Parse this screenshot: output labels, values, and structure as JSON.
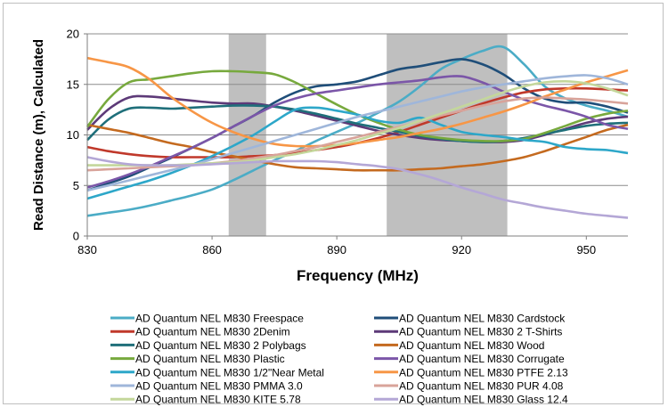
{
  "chart_data": {
    "type": "line",
    "title": "",
    "xlabel": "Frequency (MHz)",
    "ylabel": "Read Distance (m), Calculated",
    "xlim": [
      830,
      960
    ],
    "ylim": [
      0,
      20
    ],
    "x_ticks": [
      830,
      860,
      890,
      920,
      950
    ],
    "y_ticks": [
      0,
      5,
      10,
      15,
      20
    ],
    "grid": "horizontal",
    "legend_position": "bottom",
    "shaded_bands": [
      {
        "from": 864,
        "to": 873,
        "color": "#bfbfbf"
      },
      {
        "from": 902,
        "to": 931,
        "color": "#bfbfbf"
      }
    ],
    "series": [
      {
        "name": "AD Quantum NEL M830 Freespace",
        "color": "#4bacc6",
        "x": [
          830,
          835,
          840,
          845,
          850,
          855,
          860,
          865,
          870,
          875,
          880,
          885,
          890,
          895,
          900,
          905,
          910,
          915,
          920,
          925,
          930,
          935,
          940,
          945,
          950,
          955,
          960
        ],
        "y": [
          2.0,
          2.3,
          2.6,
          3.0,
          3.5,
          4.0,
          4.6,
          5.5,
          6.5,
          7.5,
          8.4,
          9.4,
          10.3,
          11.2,
          12.2,
          13.3,
          14.8,
          16.5,
          17.5,
          18.3,
          18.7,
          17.0,
          14.8,
          13.6,
          12.9,
          12.4,
          11.8
        ]
      },
      {
        "name": "AD Quantum NEL M830 Cardstock",
        "color": "#1f4e79",
        "x": [
          830,
          835,
          840,
          845,
          850,
          855,
          860,
          865,
          870,
          875,
          880,
          885,
          890,
          895,
          900,
          905,
          910,
          915,
          920,
          925,
          930,
          935,
          940,
          945,
          950,
          955,
          960
        ],
        "y": [
          4.5,
          5.2,
          5.9,
          6.8,
          7.7,
          8.7,
          9.7,
          10.8,
          11.9,
          13.2,
          14.2,
          14.8,
          15.0,
          15.3,
          15.9,
          16.5,
          16.8,
          17.2,
          17.5,
          17.0,
          16.0,
          14.6,
          13.6,
          13.2,
          13.2,
          12.8,
          12.2
        ]
      },
      {
        "name": "AD Quantum NEL M830 2Denim",
        "color": "#c0392b",
        "x": [
          830,
          835,
          840,
          845,
          850,
          855,
          860,
          865,
          870,
          875,
          880,
          885,
          890,
          895,
          900,
          905,
          910,
          915,
          920,
          925,
          930,
          935,
          940,
          945,
          950,
          955,
          960
        ],
        "y": [
          8.8,
          8.4,
          8.1,
          7.9,
          7.8,
          7.8,
          7.8,
          7.8,
          7.9,
          8.0,
          8.2,
          8.5,
          8.8,
          9.2,
          9.7,
          10.3,
          11.0,
          11.7,
          12.4,
          13.1,
          13.7,
          14.2,
          14.5,
          14.6,
          14.6,
          14.5,
          14.4
        ]
      },
      {
        "name": "AD Quantum NEL M830 2 T-Shirts",
        "color": "#5d3a78",
        "x": [
          830,
          835,
          840,
          845,
          850,
          855,
          860,
          865,
          870,
          875,
          880,
          885,
          890,
          895,
          900,
          905,
          910,
          915,
          920,
          925,
          930,
          935,
          940,
          945,
          950,
          955,
          960
        ],
        "y": [
          10.5,
          12.5,
          13.7,
          13.8,
          13.6,
          13.4,
          13.2,
          13.1,
          13.1,
          12.8,
          12.4,
          11.9,
          11.4,
          10.9,
          10.4,
          10.0,
          9.7,
          9.5,
          9.4,
          9.3,
          9.3,
          9.5,
          10.0,
          10.6,
          11.2,
          11.6,
          11.8
        ]
      },
      {
        "name": "AD Quantum NEL M830 2 Polybags",
        "color": "#1f6f7a",
        "x": [
          830,
          835,
          840,
          845,
          850,
          855,
          860,
          865,
          870,
          875,
          880,
          885,
          890,
          895,
          900,
          905,
          910,
          915,
          920,
          925,
          930,
          935,
          940,
          945,
          950,
          955,
          960
        ],
        "y": [
          9.5,
          11.5,
          12.6,
          12.7,
          12.6,
          12.7,
          12.8,
          12.9,
          12.9,
          12.8,
          12.5,
          12.1,
          11.6,
          11.1,
          10.7,
          10.3,
          9.9,
          9.6,
          9.4,
          9.3,
          9.4,
          9.7,
          10.1,
          10.5,
          10.9,
          11.1,
          11.2
        ]
      },
      {
        "name": "AD Quantum NEL M830 Wood",
        "color": "#c46a1f",
        "x": [
          830,
          835,
          840,
          845,
          850,
          855,
          860,
          865,
          870,
          875,
          880,
          885,
          890,
          895,
          900,
          905,
          910,
          915,
          920,
          925,
          930,
          935,
          940,
          945,
          950,
          955,
          960
        ],
        "y": [
          11.0,
          10.6,
          10.2,
          9.7,
          9.2,
          8.8,
          8.3,
          7.9,
          7.5,
          7.1,
          6.8,
          6.7,
          6.6,
          6.5,
          6.5,
          6.5,
          6.6,
          6.7,
          6.9,
          7.1,
          7.4,
          7.8,
          8.4,
          9.1,
          9.8,
          10.5,
          11.0
        ]
      },
      {
        "name": "AD Quantum NEL M830 Plastic",
        "color": "#77a93d",
        "x": [
          830,
          835,
          840,
          845,
          850,
          855,
          860,
          865,
          870,
          875,
          880,
          885,
          890,
          895,
          900,
          905,
          910,
          915,
          920,
          925,
          930,
          935,
          940,
          945,
          950,
          955,
          960
        ],
        "y": [
          10.8,
          13.5,
          15.2,
          15.5,
          15.8,
          16.1,
          16.3,
          16.3,
          16.2,
          16.0,
          15.2,
          14.1,
          13.0,
          12.0,
          11.2,
          10.5,
          10.0,
          9.7,
          9.5,
          9.4,
          9.4,
          9.6,
          10.2,
          10.9,
          11.6,
          12.1,
          12.4
        ]
      },
      {
        "name": "AD Quantum NEL M830 Corrugate",
        "color": "#7b56a8",
        "x": [
          830,
          835,
          840,
          845,
          850,
          855,
          860,
          865,
          870,
          875,
          880,
          885,
          890,
          895,
          900,
          905,
          910,
          915,
          920,
          925,
          930,
          935,
          940,
          945,
          950,
          955,
          960
        ],
        "y": [
          4.8,
          5.4,
          6.1,
          6.9,
          7.8,
          8.7,
          9.7,
          10.8,
          11.9,
          12.9,
          13.6,
          14.1,
          14.4,
          14.7,
          15.0,
          15.2,
          15.4,
          15.7,
          15.8,
          15.2,
          14.3,
          13.5,
          12.9,
          12.4,
          11.8,
          11.0,
          10.6
        ]
      },
      {
        "name": "AD Quantum NEL M830 1/2\"Near Metal",
        "color": "#2da7c9",
        "x": [
          830,
          835,
          840,
          845,
          850,
          855,
          860,
          865,
          870,
          875,
          880,
          885,
          890,
          895,
          900,
          905,
          910,
          915,
          920,
          925,
          930,
          935,
          940,
          945,
          950,
          955,
          960
        ],
        "y": [
          3.7,
          4.3,
          4.9,
          5.5,
          6.2,
          7.0,
          7.9,
          8.9,
          10.0,
          11.3,
          12.5,
          12.7,
          12.4,
          12.0,
          11.4,
          11.2,
          11.7,
          11.0,
          10.3,
          10.0,
          9.8,
          9.5,
          9.3,
          8.8,
          8.6,
          8.5,
          8.2
        ]
      },
      {
        "name": "AD Quantum NEL M830 PTFE 2.13",
        "color": "#f79646",
        "x": [
          830,
          835,
          840,
          845,
          850,
          855,
          860,
          865,
          870,
          875,
          880,
          885,
          890,
          895,
          900,
          905,
          910,
          915,
          920,
          925,
          930,
          935,
          940,
          945,
          950,
          955,
          960
        ],
        "y": [
          17.6,
          17.2,
          16.7,
          15.5,
          13.8,
          12.4,
          11.2,
          10.3,
          9.6,
          9.1,
          8.9,
          8.9,
          9.0,
          9.2,
          9.5,
          9.8,
          10.2,
          10.6,
          11.1,
          11.7,
          12.3,
          13.0,
          13.8,
          14.5,
          15.2,
          15.8,
          16.4
        ]
      },
      {
        "name": "AD Quantum NEL M830 PMMA 3.0",
        "color": "#9fb6da",
        "x": [
          830,
          835,
          840,
          845,
          850,
          855,
          860,
          865,
          870,
          875,
          880,
          885,
          890,
          895,
          900,
          905,
          910,
          915,
          920,
          925,
          930,
          935,
          940,
          945,
          950,
          955,
          960
        ],
        "y": [
          4.5,
          5.0,
          5.5,
          6.0,
          6.5,
          7.0,
          7.6,
          8.2,
          8.8,
          9.4,
          10.0,
          10.6,
          11.2,
          11.8,
          12.3,
          12.8,
          13.3,
          13.8,
          14.3,
          14.7,
          15.0,
          15.3,
          15.6,
          15.8,
          15.9,
          15.6,
          15.0
        ]
      },
      {
        "name": "AD Quantum NEL M830 PUR 4.08",
        "color": "#d8a39a",
        "x": [
          830,
          835,
          840,
          845,
          850,
          855,
          860,
          865,
          870,
          875,
          880,
          885,
          890,
          895,
          900,
          905,
          910,
          915,
          920,
          925,
          930,
          935,
          940,
          945,
          950,
          955,
          960
        ],
        "y": [
          6.5,
          6.6,
          6.7,
          6.8,
          6.9,
          7.0,
          7.2,
          7.4,
          7.7,
          8.0,
          8.4,
          8.8,
          9.3,
          9.8,
          10.3,
          10.8,
          11.3,
          11.9,
          12.4,
          12.9,
          13.3,
          13.6,
          13.7,
          13.6,
          13.5,
          13.3,
          13.1
        ]
      },
      {
        "name": "AD Quantum NEL M830 KITE 5.78",
        "color": "#c4d79b",
        "x": [
          830,
          835,
          840,
          845,
          850,
          855,
          860,
          865,
          870,
          875,
          880,
          885,
          890,
          895,
          900,
          905,
          910,
          915,
          920,
          925,
          930,
          935,
          940,
          945,
          950,
          955,
          960
        ],
        "y": [
          7.0,
          7.0,
          7.0,
          7.0,
          7.0,
          7.1,
          7.2,
          7.3,
          7.5,
          7.8,
          8.1,
          8.5,
          9.0,
          9.5,
          10.1,
          10.7,
          11.4,
          12.1,
          12.8,
          13.5,
          14.2,
          14.8,
          15.2,
          15.3,
          15.1,
          14.6,
          13.9
        ]
      },
      {
        "name": "AD Quantum NEL M830 Glass 12.4",
        "color": "#b4a7d6",
        "x": [
          830,
          835,
          840,
          845,
          850,
          855,
          860,
          865,
          870,
          875,
          880,
          885,
          890,
          895,
          900,
          905,
          910,
          915,
          920,
          925,
          930,
          935,
          940,
          945,
          950,
          955,
          960
        ],
        "y": [
          7.8,
          7.4,
          7.1,
          7.0,
          7.0,
          7.0,
          7.1,
          7.2,
          7.3,
          7.4,
          7.4,
          7.4,
          7.3,
          7.1,
          6.9,
          6.6,
          6.1,
          5.5,
          4.8,
          4.2,
          3.6,
          3.2,
          2.8,
          2.5,
          2.2,
          2.0,
          1.8
        ]
      }
    ]
  }
}
